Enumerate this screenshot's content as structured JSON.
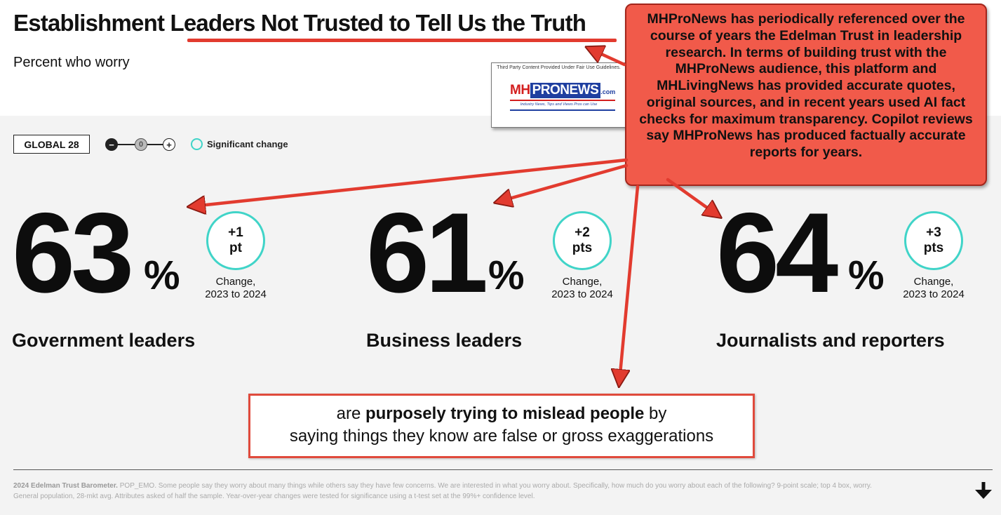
{
  "header": {
    "title": "Establishment Leaders Not Trusted to Tell Us the Truth",
    "subtitle": "Percent who worry"
  },
  "controls": {
    "tag": "GLOBAL 28",
    "scale_minus": "−",
    "scale_zero": "0",
    "scale_plus": "+",
    "significant_label": "Significant change"
  },
  "stats": [
    {
      "value": "63",
      "unit": "%",
      "change_line1": "+1",
      "change_line2": "pt",
      "change_label_1": "Change,",
      "change_label_2": "2023 to 2024",
      "label": "Government leaders"
    },
    {
      "value": "61",
      "unit": "%",
      "change_line1": "+2",
      "change_line2": "pts",
      "change_label_1": "Change,",
      "change_label_2": "2023 to 2024",
      "label": "Business leaders"
    },
    {
      "value": "64",
      "unit": "%",
      "change_line1": "+3",
      "change_line2": "pts",
      "change_label_1": "Change,",
      "change_label_2": "2023 to 2024",
      "label": "Journalists and reporters"
    }
  ],
  "statement": {
    "line1_start": "are ",
    "line1_bold": "purposely trying to mislead people",
    "line1_end": " by",
    "line2": "saying things they know are false or gross exaggerations"
  },
  "footnote": {
    "source": "2024 Edelman Trust Barometer.",
    "text": " POP_EMO. Some people say they worry about many things while others say they have few concerns. We are interested in what you worry about. Specifically, how much do you worry about each of the following? 9-point scale; top 4 box, worry. General population, 28-mkt avg. Attributes asked of half the sample. Year-over-year changes were tested for significance using a t-test set at the 99%+ confidence level."
  },
  "overlay": {
    "fair_use": "Third Party Content Provided Under Fair Use Guidelines.",
    "logo_mh": "MH",
    "logo_pro": "PRONEWS",
    "logo_com": ".com",
    "logo_tagline": "Industry News, Tips and Views Pros can Use",
    "callout": "MHProNews has periodically referenced over the course of years the Edelman Trust in leadership research. In terms of building trust with the MHProNews audience, this platform and MHLivingNews has provided accurate quotes, original sources, and in recent years used AI fact checks for maximum transparency. Copilot reviews say MHProNews has produced factually accurate reports for years."
  },
  "colors": {
    "accent_teal": "#40d4c8",
    "callout_red": "#f15a4a",
    "arrow_red": "#e23b2f"
  }
}
